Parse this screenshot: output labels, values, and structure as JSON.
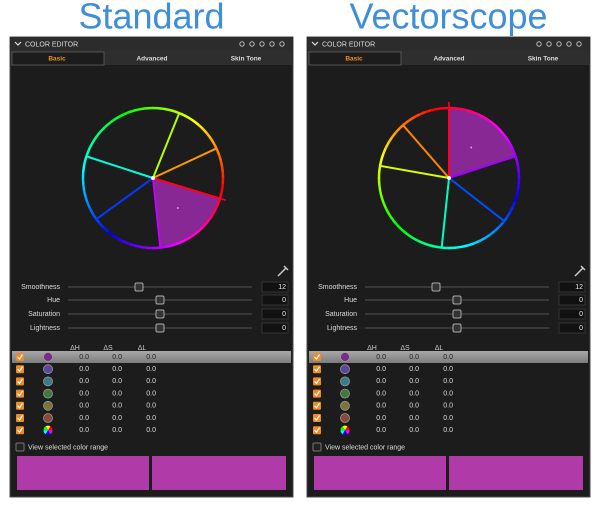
{
  "panels": [
    {
      "title": "Standard",
      "header": "COLOR EDITOR",
      "tabs": [
        "Basic",
        "Advanced",
        "Skin Tone"
      ],
      "sliders": [
        {
          "label": "Smoothness",
          "value": 12
        },
        {
          "label": "Hue",
          "value": 0
        },
        {
          "label": "Saturation",
          "value": 0
        },
        {
          "label": "Lightness",
          "value": 0
        }
      ],
      "table": {
        "columns": [
          "ΔH",
          "ΔS",
          "ΔL"
        ],
        "rows": [
          [
            "0.0",
            "0.0",
            "0.0"
          ],
          [
            "0.0",
            "0.0",
            "0.0"
          ],
          [
            "0.0",
            "0.0",
            "0.0"
          ],
          [
            "0.0",
            "0.0",
            "0.0"
          ],
          [
            "0.0",
            "0.0",
            "0.0"
          ],
          [
            "0.0",
            "0.0",
            "0.0"
          ],
          [
            "0.0",
            "0.0",
            "0.0"
          ]
        ]
      },
      "view_label": "View selected color range"
    },
    {
      "title": "Vectorscope",
      "header": "COLOR EDITOR",
      "tabs": [
        "Basic",
        "Advanced",
        "Skin Tone"
      ],
      "sliders": [
        {
          "label": "Smoothness",
          "value": 12
        },
        {
          "label": "Hue",
          "value": 0
        },
        {
          "label": "Saturation",
          "value": 0
        },
        {
          "label": "Lightness",
          "value": 0
        }
      ],
      "table": {
        "columns": [
          "ΔH",
          "ΔS",
          "ΔL"
        ],
        "rows": [
          [
            "0.0",
            "0.0",
            "0.0"
          ],
          [
            "0.0",
            "0.0",
            "0.0"
          ],
          [
            "0.0",
            "0.0",
            "0.0"
          ],
          [
            "0.0",
            "0.0",
            "0.0"
          ],
          [
            "0.0",
            "0.0",
            "0.0"
          ],
          [
            "0.0",
            "0.0",
            "0.0"
          ],
          [
            "0.0",
            "0.0",
            "0.0"
          ]
        ]
      },
      "view_label": "View selected color range"
    }
  ]
}
